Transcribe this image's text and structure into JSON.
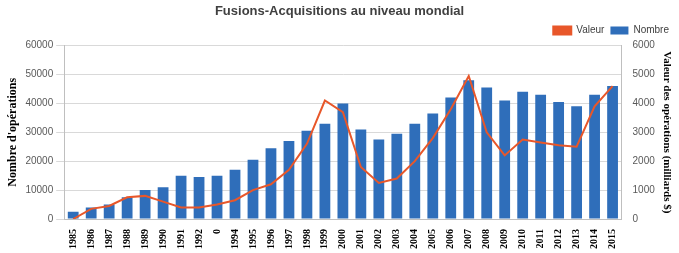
{
  "chart_data": {
    "type": "bar",
    "title": "Fusions-Acquisitions au niveau mondial",
    "categories": [
      "1985",
      "1986",
      "1987",
      "1988",
      "1989",
      "1990",
      "1991",
      "1992",
      "0",
      "1994",
      "1995",
      "1996",
      "1997",
      "1998",
      "1999",
      "2000",
      "2001",
      "2002",
      "2003",
      "2004",
      "2005",
      "2006",
      "2007",
      "2008",
      "2009",
      "2010",
      "2011",
      "2012",
      "2013",
      "2014",
      "2015"
    ],
    "series": [
      {
        "name": "Nombre",
        "type": "bar",
        "color": "#2f6eba",
        "values": [
          2500,
          4000,
          5000,
          7500,
          10000,
          11000,
          15000,
          14500,
          15000,
          17000,
          20500,
          24500,
          27000,
          30500,
          33000,
          40000,
          31000,
          27500,
          29500,
          33000,
          36500,
          42000,
          48000,
          45500,
          41000,
          44000,
          43000,
          40500,
          39000,
          43000,
          46000
        ]
      },
      {
        "name": "Valeur",
        "type": "line",
        "color": "#e8572a",
        "axis": "y2",
        "values": [
          0,
          350,
          450,
          750,
          800,
          600,
          400,
          400,
          500,
          650,
          1000,
          1200,
          1700,
          2600,
          4100,
          3700,
          1800,
          1250,
          1400,
          2000,
          2800,
          3800,
          4950,
          3000,
          2200,
          2750,
          2650,
          2550,
          2500,
          3900,
          4600
        ]
      }
    ],
    "y_label": "Nombre d'opérations",
    "y2_label": "Valeur des opérations (milliards $)",
    "ylim": [
      0,
      60000
    ],
    "yticks": [
      0,
      10000,
      20000,
      30000,
      40000,
      50000,
      60000
    ],
    "y2lim": [
      0,
      6000
    ],
    "y2ticks": [
      0,
      1000,
      2000,
      3000,
      4000,
      5000,
      6000
    ],
    "grid": true,
    "legend": "top-right"
  }
}
